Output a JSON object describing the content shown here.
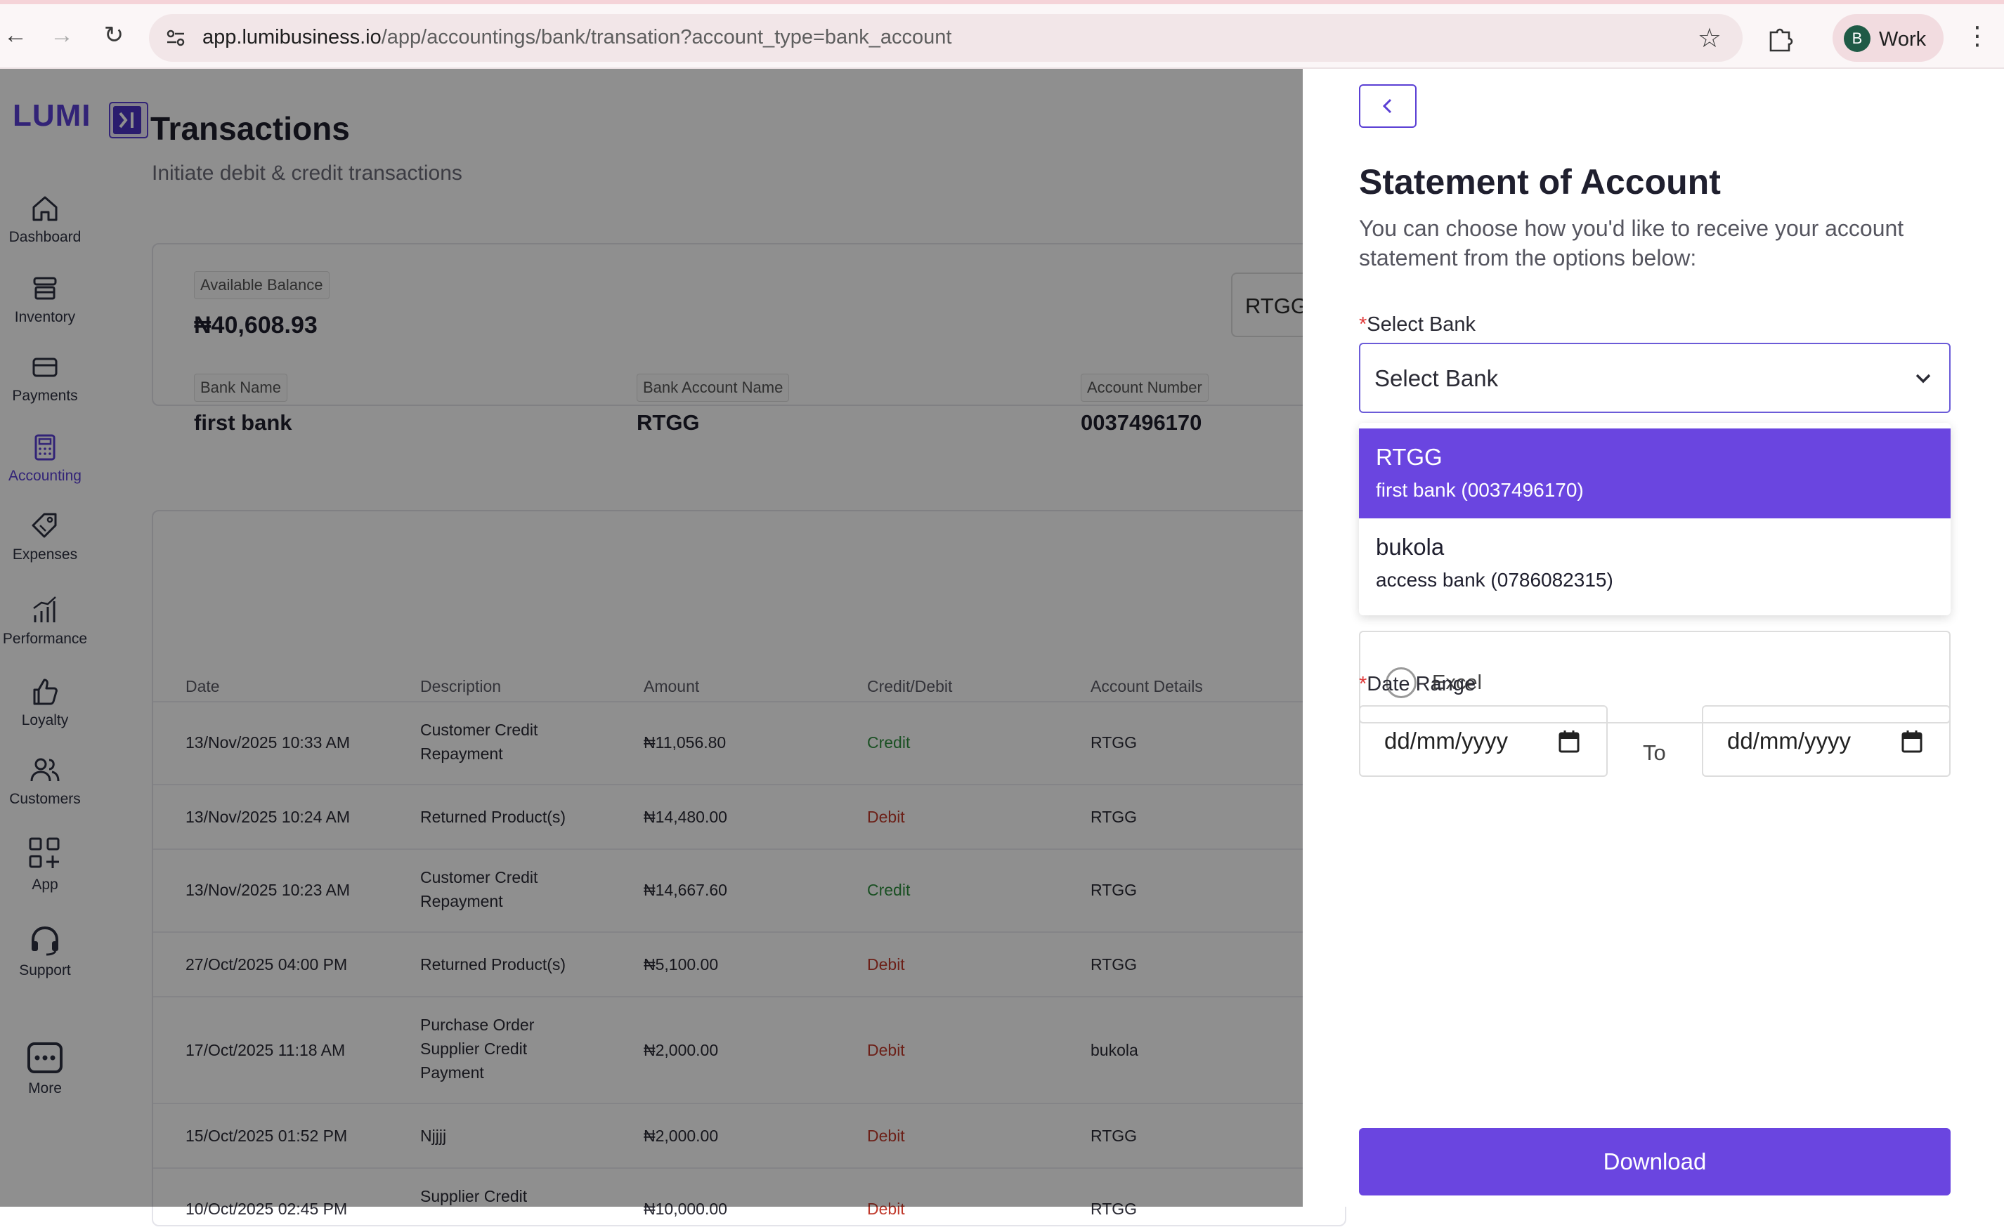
{
  "browser": {
    "url_host": "app.lumibusiness.io",
    "url_path": "/app/accountings/bank/transation?account_type=bank_account",
    "profile_initial": "B",
    "profile_name": "Work"
  },
  "app": {
    "logo": "LUMI"
  },
  "sidebar": {
    "items": [
      {
        "label": "Dashboard",
        "icon": "home-icon"
      },
      {
        "label": "Inventory",
        "icon": "store-icon"
      },
      {
        "label": "Payments",
        "icon": "card-icon"
      },
      {
        "label": "Accounting",
        "icon": "calculator-icon",
        "active": true
      },
      {
        "label": "Expenses",
        "icon": "tag-icon"
      },
      {
        "label": "Performance",
        "icon": "chart-icon"
      },
      {
        "label": "Loyalty",
        "icon": "thumbs-up-icon"
      },
      {
        "label": "Customers",
        "icon": "users-icon"
      },
      {
        "label": "App",
        "icon": "grid-plus-icon"
      },
      {
        "label": "Support",
        "icon": "headset-icon"
      },
      {
        "label": "More",
        "icon": "more-icon"
      }
    ]
  },
  "page": {
    "title": "Transactions",
    "subtitle": "Initiate debit & credit transactions"
  },
  "balance": {
    "available_label": "Available Balance",
    "available_value": "₦40,608.93",
    "bank_name_label": "Bank Name",
    "bank_name_value": "first bank",
    "account_name_label": "Bank Account Name",
    "account_name_value": "RTGG",
    "account_number_label": "Account Number",
    "account_number_value": "0037496170",
    "account_selector": "RTGG"
  },
  "table": {
    "headers": [
      "Date",
      "Description",
      "Amount",
      "Credit/Debit",
      "Account Details"
    ],
    "rows": [
      {
        "date": "13/Nov/2025 10:33 AM",
        "desc": [
          "Customer Credit",
          "Repayment"
        ],
        "amount": "₦11,056.80",
        "type": "Credit",
        "account": "RTGG"
      },
      {
        "date": "13/Nov/2025 10:24 AM",
        "desc": [
          "Returned Product(s)"
        ],
        "amount": "₦14,480.00",
        "type": "Debit",
        "account": "RTGG"
      },
      {
        "date": "13/Nov/2025 10:23 AM",
        "desc": [
          "Customer Credit",
          "Repayment"
        ],
        "amount": "₦14,667.60",
        "type": "Credit",
        "account": "RTGG"
      },
      {
        "date": "27/Oct/2025 04:00 PM",
        "desc": [
          "Returned Product(s)"
        ],
        "amount": "₦5,100.00",
        "type": "Debit",
        "account": "RTGG"
      },
      {
        "date": "17/Oct/2025 11:18 AM",
        "desc": [
          "Purchase Order",
          "Supplier Credit",
          "Payment"
        ],
        "amount": "₦2,000.00",
        "type": "Debit",
        "account": "bukola"
      },
      {
        "date": "15/Oct/2025 01:52 PM",
        "desc": [
          "Njjjj"
        ],
        "amount": "₦2,000.00",
        "type": "Debit",
        "account": "RTGG"
      },
      {
        "date": "10/Oct/2025 02:45 PM",
        "desc": [
          "Supplier Credit"
        ],
        "amount": "₦10,000.00",
        "type": "Debit",
        "account": "RTGG"
      }
    ]
  },
  "drawer": {
    "title": "Statement of Account",
    "description": "You can choose how you'd like to receive your account statement from the options below:",
    "select_bank_label": "Select Bank",
    "select_bank_placeholder": "Select Bank",
    "bank_options": [
      {
        "name": "RTGG",
        "detail": "first bank (0037496170)",
        "highlighted": true
      },
      {
        "name": "bukola",
        "detail": "access bank (0786082315)",
        "highlighted": false
      }
    ],
    "format_option_visible": "Excel",
    "date_range_label": "Date Range",
    "date_from_placeholder": "dd/mm/yyyy",
    "date_to_placeholder": "dd/mm/yyyy",
    "to_label": "To",
    "download_label": "Download"
  },
  "colors": {
    "brand": "#6a45e0",
    "credit": "#2f8f3f",
    "debit": "#c0392b"
  }
}
